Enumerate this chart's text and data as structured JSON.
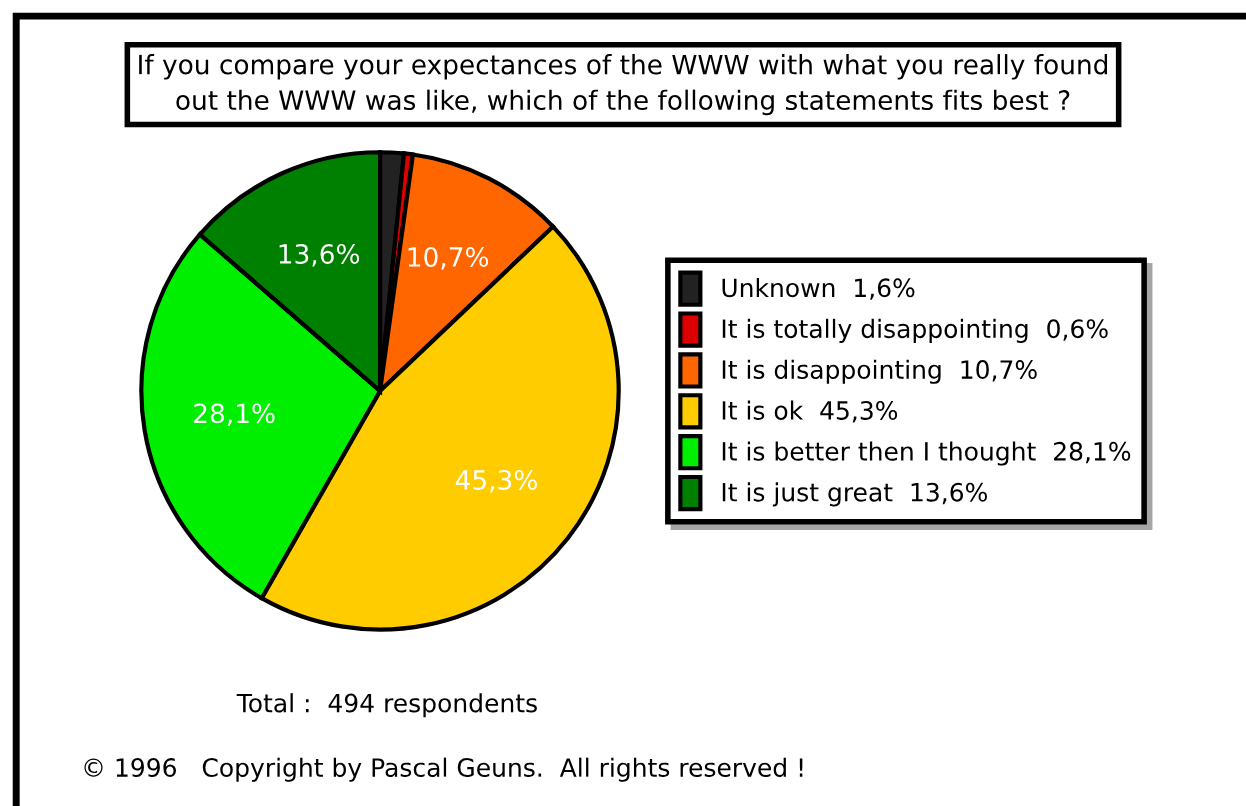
{
  "chart_data": {
    "type": "pie",
    "title": "If you compare your expectances of the WWW with what you really found\nout the WWW was like, which of the following statements fits best ?",
    "categories": [
      "Unknown  1,6%",
      "It is totally disappointing  0,6%",
      "It is disappointing  10,7%",
      "It is ok  45,3%",
      "It is better then I thought  28,1%",
      "It is just great  13,6%"
    ],
    "values": [
      1.6,
      0.6,
      10.7,
      45.3,
      28.1,
      13.6
    ],
    "colors": [
      "#222222",
      "#dd0000",
      "#ff6600",
      "#ffcc00",
      "#00ee00",
      "#008000"
    ],
    "value_labels": [
      null,
      null,
      "10,7%",
      "45,3%",
      "28,1%",
      "13,6%"
    ],
    "legend": "right",
    "annotations": [
      "Total :  494 respondents",
      "© 1996   Copyright by Pascal Geuns.  All rights reserved !"
    ]
  }
}
